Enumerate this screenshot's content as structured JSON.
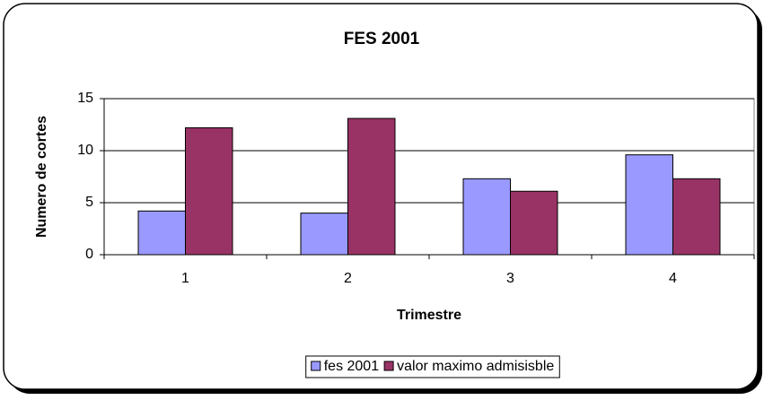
{
  "chart_data": {
    "type": "bar",
    "title": "FES 2001",
    "x_label": "Trimestre",
    "y_label": "Numero de cortes",
    "categories": [
      "1",
      "2",
      "3",
      "4"
    ],
    "series": [
      {
        "name": "fes 2001",
        "color": "#9999ff",
        "values": [
          4.2,
          4.0,
          7.3,
          9.6
        ]
      },
      {
        "name": "valor maximo admisisble",
        "color": "#993366",
        "values": [
          12.2,
          13.1,
          6.1,
          7.3
        ]
      }
    ],
    "ylim": [
      0,
      15
    ],
    "yticks": [
      0,
      5,
      10,
      15
    ],
    "grid": true,
    "legend": "bottom"
  }
}
